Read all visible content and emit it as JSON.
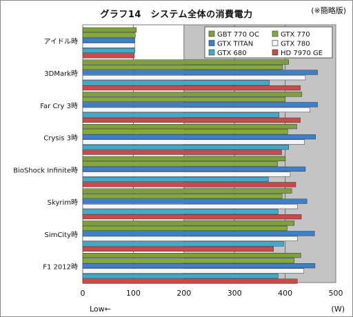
{
  "chart_data": {
    "type": "bar",
    "orientation": "horizontal",
    "title": "グラフ14　システム全体の消費電力",
    "note": "(※簡略版)",
    "categories": [
      "アイドル時",
      "3DMark時",
      "Far Cry 3時",
      "Crysis 3時",
      "BioShock Infinite時",
      "Skyrim時",
      "SimCity時",
      "F1 2012時"
    ],
    "series": [
      {
        "name": "GBT 770 OC",
        "color": "#7f9f3f",
        "values": [
          106,
          407,
          433,
          423,
          400,
          413,
          418,
          431
        ]
      },
      {
        "name": "GTX 770",
        "color": "#83aa3a",
        "values": [
          104,
          395,
          400,
          405,
          385,
          394,
          404,
          418
        ]
      },
      {
        "name": "GTX TITAN",
        "color": "#3f7fc8",
        "values": [
          103,
          464,
          464,
          460,
          440,
          443,
          458,
          459
        ]
      },
      {
        "name": "GTX 780",
        "color": "#f2f6fb",
        "values": [
          103,
          440,
          449,
          438,
          410,
          424,
          424,
          437
        ]
      },
      {
        "name": "GTX 680",
        "color": "#43a9c9",
        "values": [
          103,
          369,
          388,
          407,
          367,
          386,
          397,
          386
        ]
      },
      {
        "name": "HD 7970 GE",
        "color": "#c94a4a",
        "values": [
          102,
          430,
          430,
          393,
          421,
          432,
          377,
          424
        ]
      }
    ],
    "xlim": [
      0,
      500
    ],
    "xticks": [
      "0",
      "100",
      "200",
      "300",
      "400",
      "500"
    ],
    "xunit": "(W)",
    "xnote": "Low←",
    "grid": true,
    "legend": "top-right"
  }
}
